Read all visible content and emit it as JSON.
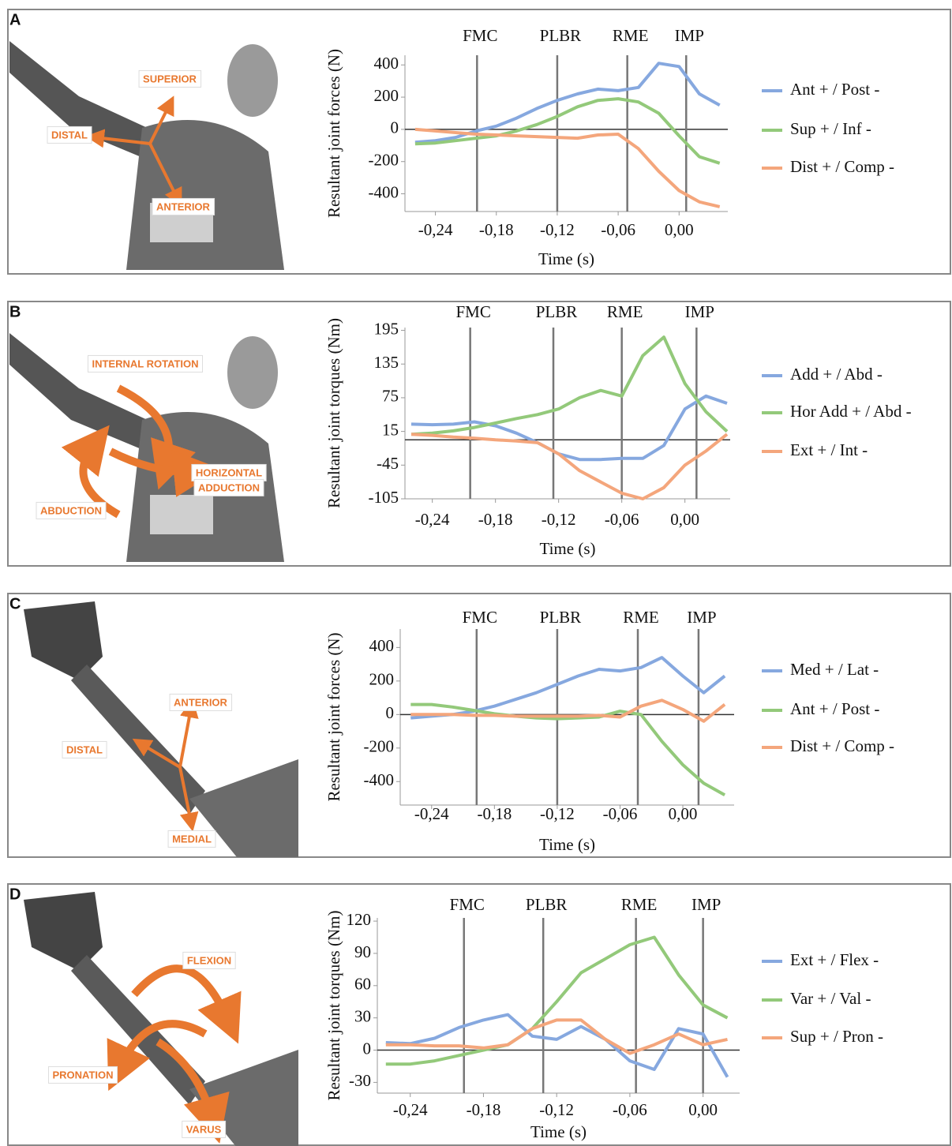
{
  "panels": [
    {
      "letter": "A",
      "labels": [
        "SUPERIOR",
        "DISTAL",
        "ANTERIOR"
      ]
    },
    {
      "letter": "B",
      "labels": [
        "INTERNAL ROTATION",
        "HORIZONTAL",
        "ADDUCTION",
        "ABDUCTION"
      ]
    },
    {
      "letter": "C",
      "labels": [
        "ANTERIOR",
        "DISTAL",
        "MEDIAL"
      ]
    },
    {
      "letter": "D",
      "labels": [
        "FLEXION",
        "PRONATION",
        "VARUS"
      ]
    }
  ],
  "chart_data": [
    {
      "type": "line",
      "y_label": "Resultant joint forces (N)",
      "x_label": "Time (s)",
      "xlim": [
        -0.27,
        0.048
      ],
      "ylim": [
        -510,
        460
      ],
      "xticks": [
        {
          "value": -0.24,
          "label": "-0,24"
        },
        {
          "value": -0.18,
          "label": "-0,18"
        },
        {
          "value": -0.12,
          "label": "-0,12"
        },
        {
          "value": -0.06,
          "label": "-0,06"
        },
        {
          "value": 0,
          "label": "0,00"
        }
      ],
      "yticks": [
        -400,
        -200,
        0,
        200,
        400
      ],
      "zero_line": true,
      "events": [
        {
          "label": "FMC",
          "x": -0.199
        },
        {
          "label": "PLBR",
          "x": -0.12
        },
        {
          "label": "RME",
          "x": -0.051
        },
        {
          "label": "IMP",
          "x": 0.007
        }
      ],
      "x": [
        -0.26,
        -0.24,
        -0.22,
        -0.2,
        -0.18,
        -0.16,
        -0.14,
        -0.12,
        -0.1,
        -0.08,
        -0.06,
        -0.04,
        -0.02,
        0,
        0.02,
        0.04
      ],
      "series": [
        {
          "name": "Ant + / Post -",
          "color": "#86a8df",
          "values": [
            -80,
            -70,
            -50,
            -10,
            20,
            70,
            130,
            180,
            220,
            250,
            240,
            260,
            410,
            390,
            220,
            150
          ]
        },
        {
          "name": "Sup + / Inf -",
          "color": "#93c97a",
          "values": [
            -90,
            -85,
            -70,
            -55,
            -40,
            -10,
            30,
            80,
            140,
            180,
            190,
            170,
            100,
            -40,
            -170,
            -210
          ]
        },
        {
          "name": "Dist + / Comp -",
          "color": "#f4a67c",
          "values": [
            0,
            -10,
            -20,
            -30,
            -35,
            -40,
            -45,
            -50,
            -55,
            -35,
            -30,
            -120,
            -260,
            -380,
            -450,
            -480
          ]
        }
      ]
    },
    {
      "type": "line",
      "y_label": "Resultant joint torques (Nm)",
      "x_label": "Time (s)",
      "xlim": [
        -0.266,
        0.043
      ],
      "ylim": [
        -105,
        200
      ],
      "xticks": [
        {
          "value": -0.24,
          "label": "-0,24"
        },
        {
          "value": -0.18,
          "label": "-0,18"
        },
        {
          "value": -0.12,
          "label": "-0,12"
        },
        {
          "value": -0.06,
          "label": "-0,06"
        },
        {
          "value": 0,
          "label": "0,00"
        }
      ],
      "yticks": [
        -105,
        -45,
        15,
        75,
        135,
        195
      ],
      "zero_line": true,
      "events": [
        {
          "label": "FMC",
          "x": -0.204
        },
        {
          "label": "PLBR",
          "x": -0.125
        },
        {
          "label": "RME",
          "x": -0.06
        },
        {
          "label": "IMP",
          "x": 0.011
        }
      ],
      "x": [
        -0.26,
        -0.24,
        -0.22,
        -0.2,
        -0.18,
        -0.16,
        -0.14,
        -0.12,
        -0.1,
        -0.08,
        -0.06,
        -0.04,
        -0.02,
        0,
        0.02,
        0.04
      ],
      "series": [
        {
          "name": "Add + / Abd -",
          "color": "#86a8df",
          "values": [
            28,
            27,
            28,
            32,
            25,
            12,
            -5,
            -25,
            -35,
            -35,
            -33,
            -33,
            -10,
            55,
            78,
            65
          ]
        },
        {
          "name": "Hor Add + / Abd -",
          "color": "#93c97a",
          "values": [
            10,
            12,
            16,
            22,
            30,
            38,
            45,
            55,
            75,
            88,
            78,
            150,
            183,
            100,
            50,
            15
          ]
        },
        {
          "name": "Ext + / Int -",
          "color": "#f4a67c",
          "values": [
            10,
            8,
            5,
            3,
            0,
            -2,
            -5,
            -25,
            -55,
            -75,
            -95,
            -105,
            -85,
            -45,
            -20,
            10
          ]
        }
      ]
    },
    {
      "type": "line",
      "y_label": "Resultant joint forces (N)",
      "x_label": "Time (s)",
      "xlim": [
        -0.27,
        0.049
      ],
      "ylim": [
        -540,
        510
      ],
      "xticks": [
        {
          "value": -0.24,
          "label": "-0,24"
        },
        {
          "value": -0.18,
          "label": "-0,18"
        },
        {
          "value": -0.12,
          "label": "-0,12"
        },
        {
          "value": -0.06,
          "label": "-0,06"
        },
        {
          "value": 0,
          "label": "0,00"
        }
      ],
      "yticks": [
        -400,
        -200,
        0,
        200,
        400
      ],
      "zero_line": true,
      "events": [
        {
          "label": "FMC",
          "x": -0.197
        },
        {
          "label": "PLBR",
          "x": -0.12
        },
        {
          "label": "RME",
          "x": -0.043
        },
        {
          "label": "IMP",
          "x": 0.015
        }
      ],
      "x": [
        -0.26,
        -0.24,
        -0.22,
        -0.2,
        -0.18,
        -0.16,
        -0.14,
        -0.12,
        -0.1,
        -0.08,
        -0.06,
        -0.04,
        -0.02,
        0,
        0.02,
        0.04
      ],
      "series": [
        {
          "name": "Med + / Lat -",
          "color": "#86a8df",
          "values": [
            -20,
            -10,
            0,
            20,
            50,
            90,
            130,
            180,
            230,
            270,
            260,
            280,
            340,
            230,
            130,
            230
          ]
        },
        {
          "name": "Ant + / Post -",
          "color": "#93c97a",
          "values": [
            60,
            60,
            45,
            25,
            5,
            -10,
            -20,
            -25,
            -20,
            -15,
            20,
            0,
            -160,
            -300,
            -410,
            -480
          ]
        },
        {
          "name": "Dist + / Comp -",
          "color": "#f4a67c",
          "values": [
            0,
            0,
            0,
            -5,
            -5,
            -10,
            -10,
            -10,
            -10,
            -5,
            -15,
            50,
            85,
            30,
            -40,
            60
          ]
        }
      ]
    },
    {
      "type": "line",
      "y_label": "Resultant joint torques (Nm)",
      "x_label": "Time (s)",
      "xlim": [
        -0.267,
        0.03
      ],
      "ylim": [
        -40,
        123
      ],
      "xticks": [
        {
          "value": -0.24,
          "label": "-0,24"
        },
        {
          "value": -0.18,
          "label": "-0,18"
        },
        {
          "value": -0.12,
          "label": "-0,12"
        },
        {
          "value": -0.06,
          "label": "-0,06"
        },
        {
          "value": 0,
          "label": "0,00"
        }
      ],
      "yticks": [
        -30,
        0,
        30,
        60,
        90,
        120
      ],
      "zero_line": true,
      "events": [
        {
          "label": "FMC",
          "x": -0.196
        },
        {
          "label": "PLBR",
          "x": -0.131
        },
        {
          "label": "RME",
          "x": -0.055
        },
        {
          "label": "IMP",
          "x": 0
        }
      ],
      "x": [
        -0.26,
        -0.24,
        -0.22,
        -0.2,
        -0.18,
        -0.16,
        -0.14,
        -0.12,
        -0.1,
        -0.08,
        -0.06,
        -0.04,
        -0.02,
        0,
        0.02
      ],
      "series": [
        {
          "name": "Ext + / Flex -",
          "color": "#86a8df",
          "values": [
            7,
            6,
            11,
            21,
            28,
            33,
            13,
            10,
            22,
            10,
            -10,
            -18,
            20,
            15,
            -25
          ]
        },
        {
          "name": "Var + / Val -",
          "color": "#93c97a",
          "values": [
            -13,
            -13,
            -10,
            -5,
            0,
            5,
            20,
            45,
            72,
            85,
            98,
            105,
            70,
            42,
            30
          ]
        },
        {
          "name": "Sup + / Pron -",
          "color": "#f4a67c",
          "values": [
            5,
            5,
            4,
            4,
            2,
            5,
            20,
            28,
            28,
            10,
            -3,
            5,
            15,
            5,
            10
          ]
        }
      ]
    }
  ]
}
